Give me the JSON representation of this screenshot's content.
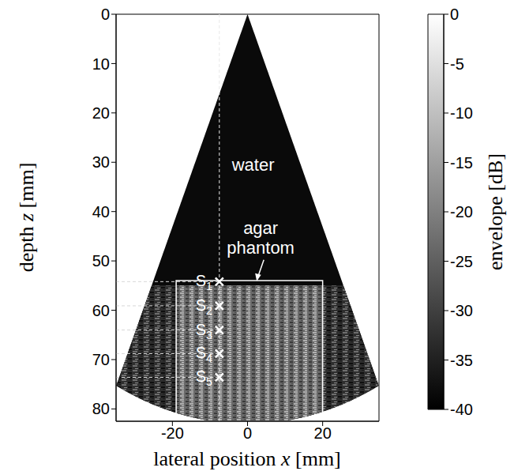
{
  "chart_data": {
    "type": "image",
    "xlabel": "lateral position x [mm]",
    "ylabel": "depth z [mm]",
    "xlim": [
      -35,
      35
    ],
    "xticks": [
      -20,
      0,
      20
    ],
    "ylim": [
      0,
      82.5
    ],
    "yticks": [
      0,
      10,
      20,
      30,
      40,
      50,
      60,
      70,
      80
    ],
    "grid": false,
    "colorbar": {
      "label": "envelope [dB]",
      "range": [
        -40,
        0
      ],
      "ticks": [
        0,
        -5,
        -10,
        -15,
        -20,
        -25,
        -30,
        -35,
        -40
      ]
    },
    "annotations": [
      "water",
      "agar phantom"
    ],
    "points": {
      "labels": [
        "S1",
        "S2",
        "S3",
        "S4",
        "S5"
      ],
      "x": [
        -7.5,
        -7.5,
        -7.5,
        -7.5,
        -7.5
      ],
      "z": [
        54.2,
        59.1,
        64,
        68.8,
        73.6
      ]
    },
    "marker": "x",
    "line_style": "dashed",
    "sector": {
      "apex": [
        0,
        0
      ],
      "radius": 83,
      "half_angle": 24.9
    },
    "phantom_surface": 55,
    "roi": {
      "x": [
        -19,
        20
      ],
      "z": [
        54,
        82.5
      ]
    }
  }
}
